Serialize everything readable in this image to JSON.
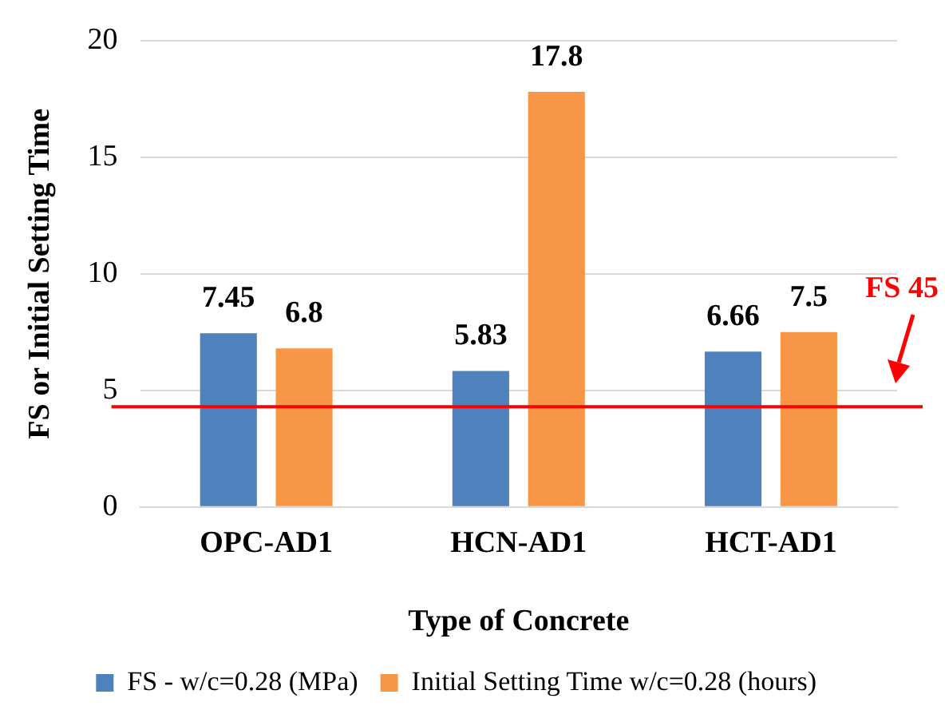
{
  "chart_data": {
    "type": "bar",
    "xlabel": "Type of Concrete",
    "ylabel": "FS or Initial Setting Time",
    "categories": [
      "OPC-AD1",
      "HCN-AD1",
      "HCT-AD1"
    ],
    "series": [
      {
        "name": "FS - w/c=0.28 (MPa)",
        "color": "#4f81bd",
        "values": [
          7.45,
          5.83,
          6.66
        ]
      },
      {
        "name": "Initial Setting Time w/c=0.28 (hours)",
        "color": "#f79646",
        "values": [
          6.8,
          17.8,
          7.5
        ]
      }
    ],
    "ylim": [
      0,
      20
    ],
    "yticks": [
      0,
      5,
      10,
      15,
      20
    ],
    "grid": "y",
    "legend": "bottom",
    "data_labels": true,
    "ref_lines": [
      {
        "axis": "y",
        "value": 4.3,
        "label": "FS 45",
        "color": "#ff0000"
      }
    ]
  }
}
